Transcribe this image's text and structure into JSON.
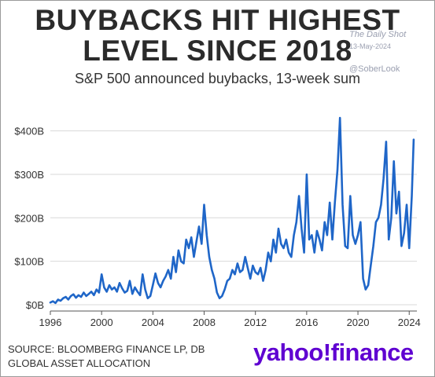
{
  "header": {
    "title_line1": "BUYBACKS HIT HIGHEST",
    "title_line2": "LEVEL SINCE 2018",
    "subtitle": "S&P 500 announced buybacks, 13-week sum"
  },
  "watermark": {
    "source_name": "The Daily Shot",
    "date": "13-May-2024",
    "handle": "@SoberLook"
  },
  "footer": {
    "source_line1": "SOURCE: BLOOMBERG FINANCE LP, DB",
    "source_line2": "GLOBAL ASSET ALLOCATION",
    "brand_yahoo": "yahoo",
    "brand_bang": "!",
    "brand_finance": "finance"
  },
  "colors": {
    "line": "#1f66c8",
    "grid": "#d9d9d9",
    "axis": "#555555",
    "brand": "#5f01d1"
  },
  "chart_data": {
    "type": "line",
    "title": "BUYBACKS HIT HIGHEST LEVEL SINCE 2018",
    "subtitle": "S&P 500 announced buybacks, 13-week sum",
    "xlabel": "",
    "ylabel": "",
    "xlim": [
      1996,
      2024.6
    ],
    "ylim": [
      0,
      430
    ],
    "x_ticks": [
      1996,
      2000,
      2004,
      2008,
      2012,
      2016,
      2020,
      2024
    ],
    "x_tick_labels": [
      "1996",
      "2000",
      "2004",
      "2008",
      "2012",
      "2016",
      "2020",
      "2024"
    ],
    "y_ticks": [
      0,
      100,
      200,
      300,
      400
    ],
    "y_tick_labels": [
      "$0B",
      "$100B",
      "$200B",
      "$300B",
      "$400B"
    ],
    "grid": "horizontal",
    "legend": "none",
    "series": [
      {
        "x": [
          1996.0,
          1996.2,
          1996.4,
          1996.6,
          1996.8,
          1997.0,
          1997.2,
          1997.4,
          1997.6,
          1997.8,
          1998.0,
          1998.2,
          1998.4,
          1998.6,
          1998.8,
          1999.0,
          1999.2,
          1999.4,
          1999.6,
          1999.8,
          2000.0,
          2000.2,
          2000.4,
          2000.6,
          2000.8,
          2001.0,
          2001.2,
          2001.4,
          2001.6,
          2001.8,
          2002.0,
          2002.2,
          2002.4,
          2002.6,
          2002.8,
          2003.0,
          2003.2,
          2003.4,
          2003.6,
          2003.8,
          2004.0,
          2004.2,
          2004.4,
          2004.6,
          2004.8,
          2005.0,
          2005.2,
          2005.4,
          2005.6,
          2005.8,
          2006.0,
          2006.2,
          2006.4,
          2006.6,
          2006.8,
          2007.0,
          2007.2,
          2007.4,
          2007.6,
          2007.8,
          2008.0,
          2008.2,
          2008.4,
          2008.6,
          2008.8,
          2009.0,
          2009.2,
          2009.4,
          2009.6,
          2009.8,
          2010.0,
          2010.2,
          2010.4,
          2010.6,
          2010.8,
          2011.0,
          2011.2,
          2011.4,
          2011.6,
          2011.8,
          2012.0,
          2012.2,
          2012.4,
          2012.6,
          2012.8,
          2013.0,
          2013.2,
          2013.4,
          2013.6,
          2013.8,
          2014.0,
          2014.2,
          2014.4,
          2014.6,
          2014.8,
          2015.0,
          2015.2,
          2015.4,
          2015.6,
          2015.8,
          2016.0,
          2016.2,
          2016.4,
          2016.6,
          2016.8,
          2017.0,
          2017.2,
          2017.4,
          2017.6,
          2017.8,
          2018.0,
          2018.2,
          2018.4,
          2018.6,
          2018.8,
          2019.0,
          2019.2,
          2019.4,
          2019.6,
          2019.8,
          2020.0,
          2020.2,
          2020.4,
          2020.6,
          2020.8,
          2021.0,
          2021.2,
          2021.4,
          2021.6,
          2021.8,
          2022.0,
          2022.2,
          2022.4,
          2022.6,
          2022.8,
          2023.0,
          2023.2,
          2023.4,
          2023.6,
          2023.8,
          2024.0,
          2024.2,
          2024.35
        ],
        "y": [
          5,
          8,
          4,
          12,
          9,
          15,
          18,
          12,
          20,
          24,
          16,
          22,
          18,
          28,
          20,
          25,
          30,
          22,
          35,
          28,
          70,
          40,
          30,
          45,
          35,
          40,
          30,
          50,
          38,
          28,
          32,
          55,
          25,
          40,
          30,
          22,
          70,
          35,
          15,
          20,
          45,
          72,
          50,
          40,
          55,
          65,
          80,
          60,
          110,
          75,
          125,
          100,
          95,
          150,
          130,
          155,
          110,
          145,
          180,
          140,
          230,
          160,
          110,
          80,
          60,
          28,
          15,
          20,
          35,
          55,
          60,
          80,
          70,
          95,
          75,
          80,
          110,
          85,
          60,
          90,
          75,
          70,
          85,
          55,
          80,
          120,
          100,
          150,
          120,
          175,
          140,
          130,
          150,
          120,
          110,
          160,
          190,
          250,
          175,
          120,
          300,
          150,
          160,
          120,
          170,
          150,
          125,
          190,
          160,
          235,
          150,
          235,
          310,
          430,
          230,
          135,
          130,
          250,
          160,
          140,
          160,
          190,
          60,
          35,
          45,
          90,
          135,
          190,
          200,
          230,
          290,
          375,
          150,
          200,
          330,
          210,
          260,
          135,
          165,
          230,
          130,
          250,
          380
        ]
      }
    ]
  }
}
